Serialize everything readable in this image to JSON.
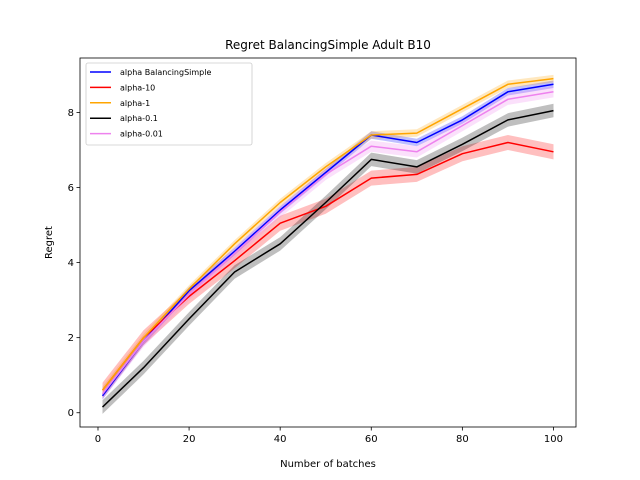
{
  "chart_data": {
    "type": "line",
    "title": "Regret BalancingSimple Adult B10",
    "xlabel": "Number of batches",
    "ylabel": "Regret",
    "xlim": [
      -3.95,
      104.95
    ],
    "ylim": [
      -0.38,
      9.45
    ],
    "xticks": [
      0,
      20,
      40,
      60,
      80,
      100
    ],
    "yticks": [
      0,
      2,
      4,
      6,
      8
    ],
    "grid": false,
    "legend_position": "top-left",
    "x": [
      1,
      10,
      20,
      30,
      40,
      50,
      60,
      70,
      80,
      90,
      100
    ],
    "series": [
      {
        "name": "alpha BalancingSimple",
        "color": "#0000ff",
        "values": [
          0.45,
          1.9,
          3.25,
          4.3,
          5.4,
          6.4,
          7.4,
          7.2,
          7.8,
          8.55,
          8.75
        ],
        "band": 0.1
      },
      {
        "name": "alpha-10",
        "color": "#ff0000",
        "values": [
          0.6,
          2.0,
          3.1,
          4.05,
          5.05,
          5.5,
          6.25,
          6.35,
          6.9,
          7.2,
          6.95
        ],
        "band": 0.2
      },
      {
        "name": "alpha-1",
        "color": "#ffa500",
        "values": [
          0.6,
          2.0,
          3.3,
          4.5,
          5.6,
          6.55,
          7.4,
          7.45,
          8.1,
          8.75,
          8.9
        ],
        "band": 0.1
      },
      {
        "name": "alpha-0.1",
        "color": "#000000",
        "values": [
          0.15,
          1.2,
          2.5,
          3.75,
          4.5,
          5.6,
          6.75,
          6.55,
          7.15,
          7.8,
          8.05
        ],
        "band": 0.18
      },
      {
        "name": "alpha-0.01",
        "color": "#ee82ee",
        "values": [
          0.5,
          1.9,
          3.15,
          4.25,
          5.35,
          6.35,
          7.1,
          6.95,
          7.65,
          8.35,
          8.55
        ],
        "band": 0.15
      }
    ]
  }
}
